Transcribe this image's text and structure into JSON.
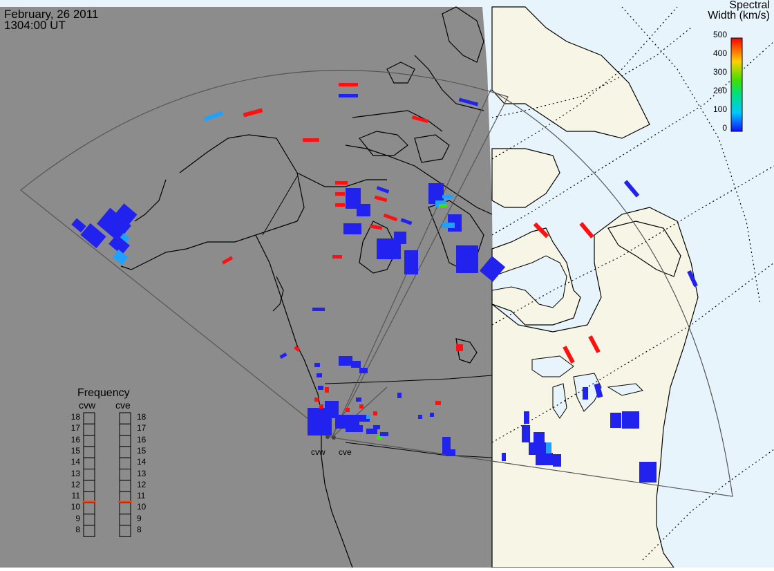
{
  "header": {
    "date": "February, 26 2011",
    "time": "1304:00 UT"
  },
  "colorbar": {
    "title_line1": "Spectral",
    "title_line2": "Width (km/s)",
    "ticks": [
      "500",
      "400",
      "300",
      "200",
      "100",
      "0"
    ],
    "range": [
      0,
      500
    ],
    "colors": [
      "#1010ff",
      "#00c8ff",
      "#00e080",
      "#40e000",
      "#ffd000",
      "#ff0000"
    ]
  },
  "radars": {
    "west": "cvw",
    "east": "cve"
  },
  "frequency": {
    "title": "Frequency",
    "labels": [
      "cvw",
      "cve"
    ],
    "ticks": [
      "18",
      "17",
      "16",
      "15",
      "14",
      "13",
      "12",
      "11",
      "10",
      "9",
      "8"
    ],
    "range": [
      8,
      18
    ],
    "values": [
      10.6,
      10.6
    ],
    "marker_color": "#ff4400"
  },
  "colors": {
    "night": "#8c8c8c",
    "land": "#f7f6e6",
    "ocean": "#e8f4fc",
    "low_width": "#2222ee",
    "high_width": "#ff1111",
    "mid_width": "#20a0ff"
  }
}
